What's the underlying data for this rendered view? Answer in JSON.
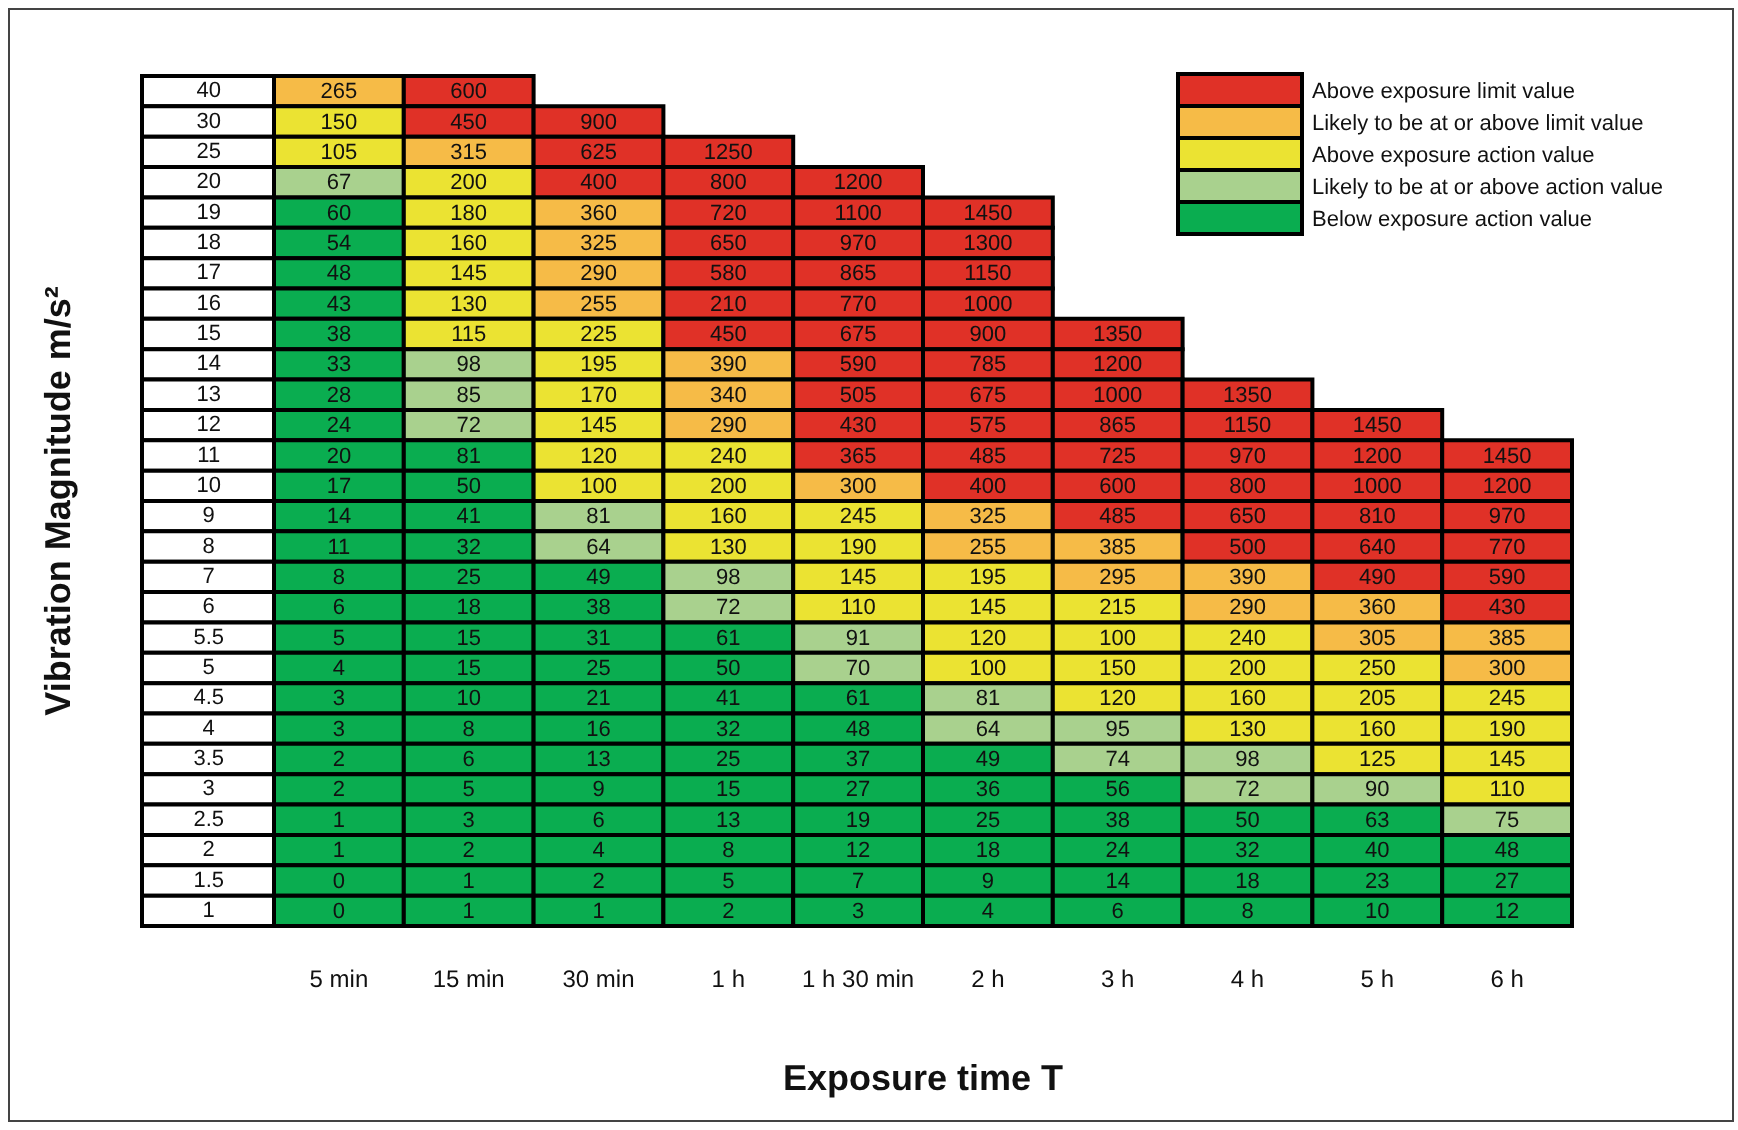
{
  "chart_data": [
    {
      "type": "heatmap",
      "xlabel": "Exposure time T",
      "ylabel": "Vibration Magnitude m/s²",
      "data_labels": true,
      "categories": [
        "5 min",
        "15 min",
        "30 min",
        "1 h",
        "1 h 30 min",
        "2 h",
        "3 h",
        "4 h",
        "5 h",
        "6 h"
      ],
      "y_categories": [
        "40",
        "30",
        "25",
        "20",
        "19",
        "18",
        "17",
        "16",
        "15",
        "14",
        "13",
        "12",
        "11",
        "10",
        "9",
        "8",
        "7",
        "6",
        "5.5",
        "5",
        "4.5",
        "4",
        "3.5",
        "3",
        "2.5",
        "2",
        "1.5",
        "1"
      ],
      "cells": [
        [
          265,
          600,
          null,
          null,
          null,
          null,
          null,
          null,
          null,
          null
        ],
        [
          150,
          450,
          900,
          null,
          null,
          null,
          null,
          null,
          null,
          null
        ],
        [
          105,
          315,
          625,
          1250,
          null,
          null,
          null,
          null,
          null,
          null
        ],
        [
          67,
          200,
          400,
          800,
          1200,
          null,
          null,
          null,
          null,
          null
        ],
        [
          60,
          180,
          360,
          720,
          1100,
          1450,
          null,
          null,
          null,
          null
        ],
        [
          54,
          160,
          325,
          650,
          970,
          1300,
          null,
          null,
          null,
          null
        ],
        [
          48,
          145,
          290,
          580,
          865,
          1150,
          null,
          null,
          null,
          null
        ],
        [
          43,
          130,
          255,
          210,
          770,
          1000,
          null,
          null,
          null,
          null
        ],
        [
          38,
          115,
          225,
          450,
          675,
          900,
          1350,
          null,
          null,
          null
        ],
        [
          33,
          98,
          195,
          390,
          590,
          785,
          1200,
          null,
          null,
          null
        ],
        [
          28,
          85,
          170,
          340,
          505,
          675,
          1000,
          1350,
          null,
          null
        ],
        [
          24,
          72,
          145,
          290,
          430,
          575,
          865,
          1150,
          1450,
          null
        ],
        [
          20,
          81,
          120,
          240,
          365,
          485,
          725,
          970,
          1200,
          1450
        ],
        [
          17,
          50,
          100,
          200,
          300,
          400,
          600,
          800,
          1000,
          1200
        ],
        [
          14,
          41,
          81,
          160,
          245,
          325,
          485,
          650,
          810,
          970
        ],
        [
          11,
          32,
          64,
          130,
          190,
          255,
          385,
          500,
          640,
          770
        ],
        [
          8,
          25,
          49,
          98,
          145,
          195,
          295,
          390,
          490,
          590
        ],
        [
          6,
          18,
          38,
          72,
          110,
          145,
          215,
          290,
          360,
          430
        ],
        [
          5,
          15,
          31,
          61,
          91,
          120,
          100,
          240,
          305,
          385
        ],
        [
          4,
          15,
          25,
          50,
          70,
          100,
          150,
          200,
          250,
          300
        ],
        [
          3,
          10,
          21,
          41,
          61,
          81,
          120,
          160,
          205,
          245
        ],
        [
          3,
          8,
          16,
          32,
          48,
          64,
          95,
          130,
          160,
          190
        ],
        [
          2,
          6,
          13,
          25,
          37,
          49,
          74,
          98,
          125,
          145
        ],
        [
          2,
          5,
          9,
          15,
          27,
          36,
          56,
          72,
          90,
          110
        ],
        [
          1,
          3,
          6,
          13,
          19,
          25,
          38,
          50,
          63,
          75
        ],
        [
          1,
          2,
          4,
          8,
          12,
          18,
          24,
          32,
          40,
          48
        ],
        [
          0,
          1,
          2,
          5,
          7,
          9,
          14,
          18,
          23,
          27
        ],
        [
          0,
          1,
          1,
          2,
          3,
          4,
          6,
          8,
          10,
          12
        ]
      ],
      "colors": [
        [
          "#f6bb47",
          "#e03127",
          null,
          null,
          null,
          null,
          null,
          null,
          null,
          null
        ],
        [
          "#ebe332",
          "#e03127",
          "#e03127",
          null,
          null,
          null,
          null,
          null,
          null,
          null
        ],
        [
          "#ebe332",
          "#f6bb47",
          "#e03127",
          "#e03127",
          null,
          null,
          null,
          null,
          null,
          null
        ],
        [
          "#a9d18e",
          "#ebe332",
          "#e03127",
          "#e03127",
          "#e03127",
          null,
          null,
          null,
          null,
          null
        ],
        [
          "#0aad50",
          "#ebe332",
          "#f6bb47",
          "#e03127",
          "#e03127",
          "#e03127",
          null,
          null,
          null,
          null
        ],
        [
          "#0aad50",
          "#ebe332",
          "#f6bb47",
          "#e03127",
          "#e03127",
          "#e03127",
          null,
          null,
          null,
          null
        ],
        [
          "#0aad50",
          "#ebe332",
          "#f6bb47",
          "#e03127",
          "#e03127",
          "#e03127",
          null,
          null,
          null,
          null
        ],
        [
          "#0aad50",
          "#ebe332",
          "#f6bb47",
          "#e03127",
          "#e03127",
          "#e03127",
          null,
          null,
          null,
          null
        ],
        [
          "#0aad50",
          "#ebe332",
          "#ebe332",
          "#e03127",
          "#e03127",
          "#e03127",
          "#e03127",
          null,
          null,
          null
        ],
        [
          "#0aad50",
          "#a9d18e",
          "#ebe332",
          "#f6bb47",
          "#e03127",
          "#e03127",
          "#e03127",
          null,
          null,
          null
        ],
        [
          "#0aad50",
          "#a9d18e",
          "#ebe332",
          "#f6bb47",
          "#e03127",
          "#e03127",
          "#e03127",
          "#e03127",
          null,
          null
        ],
        [
          "#0aad50",
          "#a9d18e",
          "#ebe332",
          "#f6bb47",
          "#e03127",
          "#e03127",
          "#e03127",
          "#e03127",
          "#e03127",
          null
        ],
        [
          "#0aad50",
          "#0aad50",
          "#ebe332",
          "#ebe332",
          "#e03127",
          "#e03127",
          "#e03127",
          "#e03127",
          "#e03127",
          "#e03127"
        ],
        [
          "#0aad50",
          "#0aad50",
          "#ebe332",
          "#ebe332",
          "#f6bb47",
          "#e03127",
          "#e03127",
          "#e03127",
          "#e03127",
          "#e03127"
        ],
        [
          "#0aad50",
          "#0aad50",
          "#a9d18e",
          "#ebe332",
          "#ebe332",
          "#f6bb47",
          "#e03127",
          "#e03127",
          "#e03127",
          "#e03127"
        ],
        [
          "#0aad50",
          "#0aad50",
          "#a9d18e",
          "#ebe332",
          "#ebe332",
          "#f6bb47",
          "#f6bb47",
          "#e03127",
          "#e03127",
          "#e03127"
        ],
        [
          "#0aad50",
          "#0aad50",
          "#0aad50",
          "#a9d18e",
          "#ebe332",
          "#ebe332",
          "#f6bb47",
          "#f6bb47",
          "#e03127",
          "#e03127"
        ],
        [
          "#0aad50",
          "#0aad50",
          "#0aad50",
          "#a9d18e",
          "#ebe332",
          "#ebe332",
          "#ebe332",
          "#f6bb47",
          "#f6bb47",
          "#e03127"
        ],
        [
          "#0aad50",
          "#0aad50",
          "#0aad50",
          "#0aad50",
          "#a9d18e",
          "#ebe332",
          "#ebe332",
          "#ebe332",
          "#f6bb47",
          "#f6bb47"
        ],
        [
          "#0aad50",
          "#0aad50",
          "#0aad50",
          "#0aad50",
          "#a9d18e",
          "#ebe332",
          "#ebe332",
          "#ebe332",
          "#ebe332",
          "#f6bb47"
        ],
        [
          "#0aad50",
          "#0aad50",
          "#0aad50",
          "#0aad50",
          "#0aad50",
          "#a9d18e",
          "#ebe332",
          "#ebe332",
          "#ebe332",
          "#ebe332"
        ],
        [
          "#0aad50",
          "#0aad50",
          "#0aad50",
          "#0aad50",
          "#0aad50",
          "#a9d18e",
          "#a9d18e",
          "#ebe332",
          "#ebe332",
          "#ebe332"
        ],
        [
          "#0aad50",
          "#0aad50",
          "#0aad50",
          "#0aad50",
          "#0aad50",
          "#0aad50",
          "#a9d18e",
          "#a9d18e",
          "#ebe332",
          "#ebe332"
        ],
        [
          "#0aad50",
          "#0aad50",
          "#0aad50",
          "#0aad50",
          "#0aad50",
          "#0aad50",
          "#0aad50",
          "#a9d18e",
          "#a9d18e",
          "#ebe332"
        ],
        [
          "#0aad50",
          "#0aad50",
          "#0aad50",
          "#0aad50",
          "#0aad50",
          "#0aad50",
          "#0aad50",
          "#0aad50",
          "#0aad50",
          "#a9d18e"
        ],
        [
          "#0aad50",
          "#0aad50",
          "#0aad50",
          "#0aad50",
          "#0aad50",
          "#0aad50",
          "#0aad50",
          "#0aad50",
          "#0aad50",
          "#0aad50"
        ],
        [
          "#0aad50",
          "#0aad50",
          "#0aad50",
          "#0aad50",
          "#0aad50",
          "#0aad50",
          "#0aad50",
          "#0aad50",
          "#0aad50",
          "#0aad50"
        ],
        [
          "#0aad50",
          "#0aad50",
          "#0aad50",
          "#0aad50",
          "#0aad50",
          "#0aad50",
          "#0aad50",
          "#0aad50",
          "#0aad50",
          "#0aad50"
        ]
      ]
    },
    {
      "type": "other",
      "categories": [
        "Above exposure limit value",
        "Likely to be at or above limit value",
        "Above exposure action value",
        "Likely to be at or above action value",
        "Below exposure action value"
      ],
      "colors": [
        "#e03127",
        "#f6bb47",
        "#ebe332",
        "#a9d18e",
        "#0aad50"
      ]
    }
  ]
}
